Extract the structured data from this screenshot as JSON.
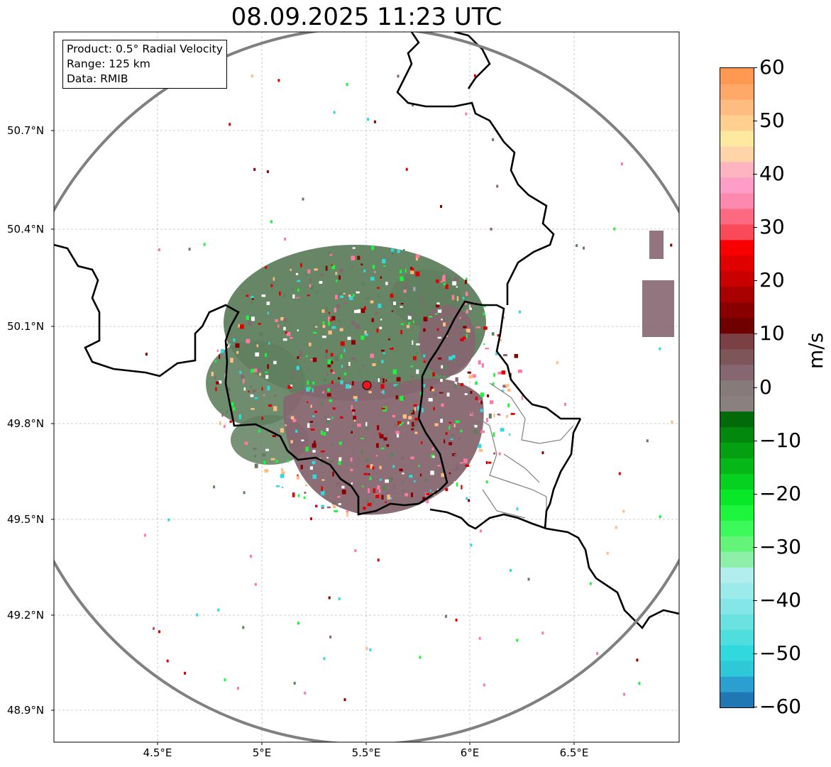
{
  "title": "08.09.2025 11:23 UTC",
  "infobox": {
    "product": "Product: 0.5° Radial Velocity",
    "range": "Range: 125 km",
    "data": "Data: RMIB"
  },
  "map": {
    "lat_ticks": [
      "50.7°N",
      "50.4°N",
      "50.1°N",
      "49.8°N",
      "49.5°N",
      "49.2°N",
      "48.9°N"
    ],
    "lon_ticks": [
      "4.5°E",
      "5°E",
      "5.5°E",
      "6°E",
      "6.5°E"
    ],
    "radar_site_color": "#e31a1c",
    "range_ring_color": "#808080",
    "border_color": "#000000",
    "echo_colors": {
      "receding": "#866670",
      "approaching": "#5f7f5e"
    }
  },
  "colorbar": {
    "unit": "m/s",
    "min": -60,
    "max": 60,
    "tick_labels": [
      "60",
      "50",
      "40",
      "30",
      "20",
      "10",
      "0",
      "−10",
      "−20",
      "−30",
      "−40",
      "−50",
      "−60"
    ],
    "colors": [
      "#1f78b4",
      "#2a9fd0",
      "#2ec8d8",
      "#31d9de",
      "#4fdede",
      "#6ae2e2",
      "#84e6e6",
      "#9ceaea",
      "#b3eeee",
      "#8ef0a8",
      "#64f47a",
      "#3cf85a",
      "#1df43c",
      "#09e828",
      "#06d020",
      "#05b818",
      "#04a012",
      "#03880e",
      "#036a0a",
      "#8a8080",
      "#867a7a",
      "#866670",
      "#7e5558",
      "#7a4044",
      "#6e0000",
      "#8a0000",
      "#a80000",
      "#c80000",
      "#e00000",
      "#f80000",
      "#fa4a5a",
      "#fb6a80",
      "#fd8aae",
      "#fe9ec8",
      "#ffb4c0",
      "#ffd4a8",
      "#ffe8a0",
      "#ffd090",
      "#ffbc80",
      "#ffa868",
      "#ff9850"
    ]
  }
}
